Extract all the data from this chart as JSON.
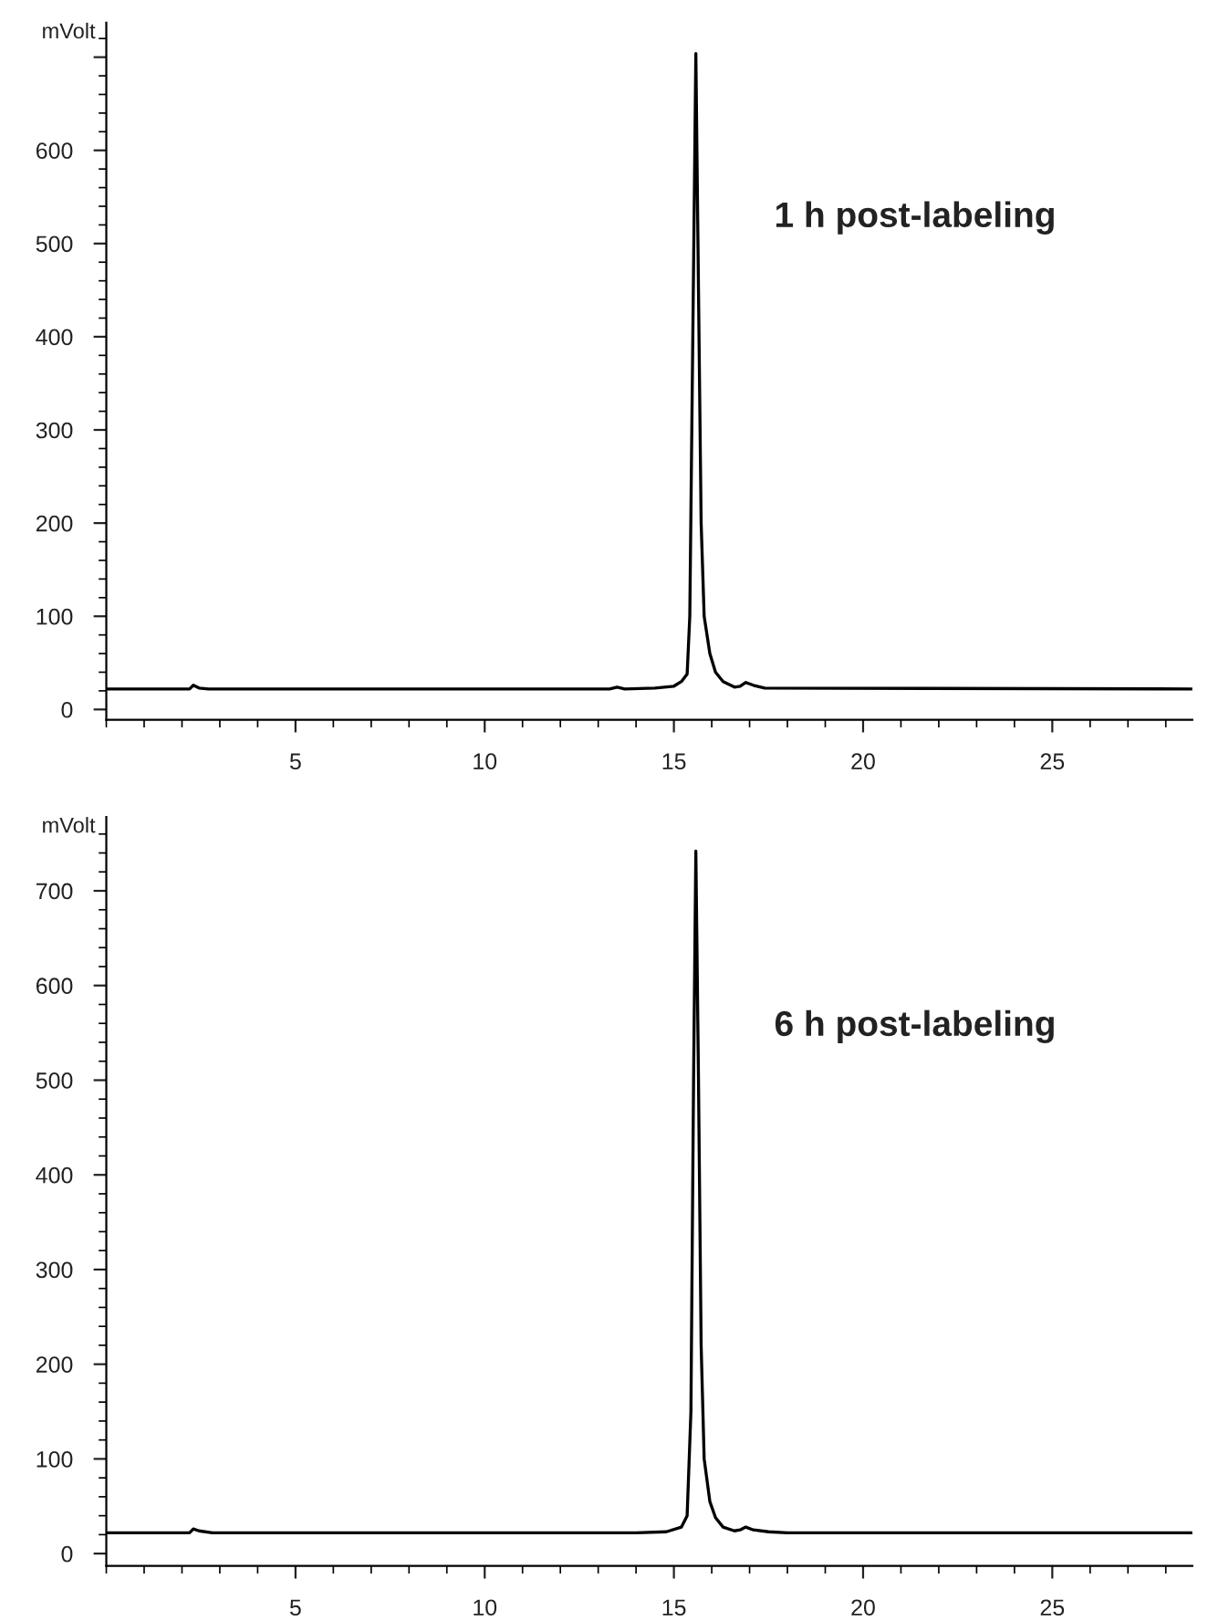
{
  "chart_data": [
    {
      "type": "line",
      "ylabel": "mVolt",
      "annotations": [
        "1 h post-labeling"
      ],
      "series": [
        {
          "color": "#000000",
          "x": [
            0,
            2.2,
            2.3,
            2.45,
            2.7,
            13.3,
            13.5,
            13.7,
            14.5,
            15.0,
            15.2,
            15.35,
            15.42,
            15.5,
            15.58,
            15.65,
            15.72,
            15.8,
            15.95,
            16.1,
            16.3,
            16.6,
            16.75,
            16.9,
            17.1,
            17.4,
            28.7
          ],
          "values": [
            22,
            22,
            26,
            23,
            22,
            22,
            24,
            22,
            23,
            25,
            30,
            38,
            100,
            400,
            704,
            450,
            200,
            100,
            60,
            40,
            30,
            24,
            25,
            29,
            26,
            23,
            22
          ]
        }
      ],
      "xlim": [
        0,
        28.7
      ],
      "ylim": [
        -11,
        737
      ],
      "xticks": [
        5,
        10,
        15,
        20,
        25
      ],
      "yticks": [
        0,
        100,
        200,
        300,
        400,
        500,
        600,
        {
          "value": 700,
          "label": null
        }
      ],
      "grid": false,
      "legend": false,
      "line_style": "solid",
      "marker": "none"
    },
    {
      "type": "line",
      "ylabel": "mVolt",
      "annotations": [
        "6 h post-labeling"
      ],
      "series": [
        {
          "color": "#000000",
          "x": [
            0,
            2.2,
            2.3,
            2.45,
            2.8,
            14.0,
            14.8,
            15.2,
            15.35,
            15.45,
            15.52,
            15.58,
            15.65,
            15.72,
            15.8,
            15.95,
            16.1,
            16.3,
            16.6,
            16.75,
            16.9,
            17.1,
            17.5,
            18.0,
            28.7
          ],
          "values": [
            22,
            22,
            26,
            24,
            22,
            22,
            23,
            28,
            40,
            150,
            500,
            742,
            500,
            220,
            100,
            55,
            38,
            28,
            24,
            25,
            28,
            25,
            23,
            22,
            22
          ]
        }
      ],
      "xlim": [
        0,
        28.7
      ],
      "ylim": [
        -13,
        778
      ],
      "xticks": [
        5,
        10,
        15,
        20,
        25
      ],
      "yticks": [
        0,
        100,
        200,
        300,
        400,
        500,
        600,
        700
      ],
      "grid": false,
      "legend": false,
      "line_style": "solid",
      "marker": "none"
    }
  ]
}
